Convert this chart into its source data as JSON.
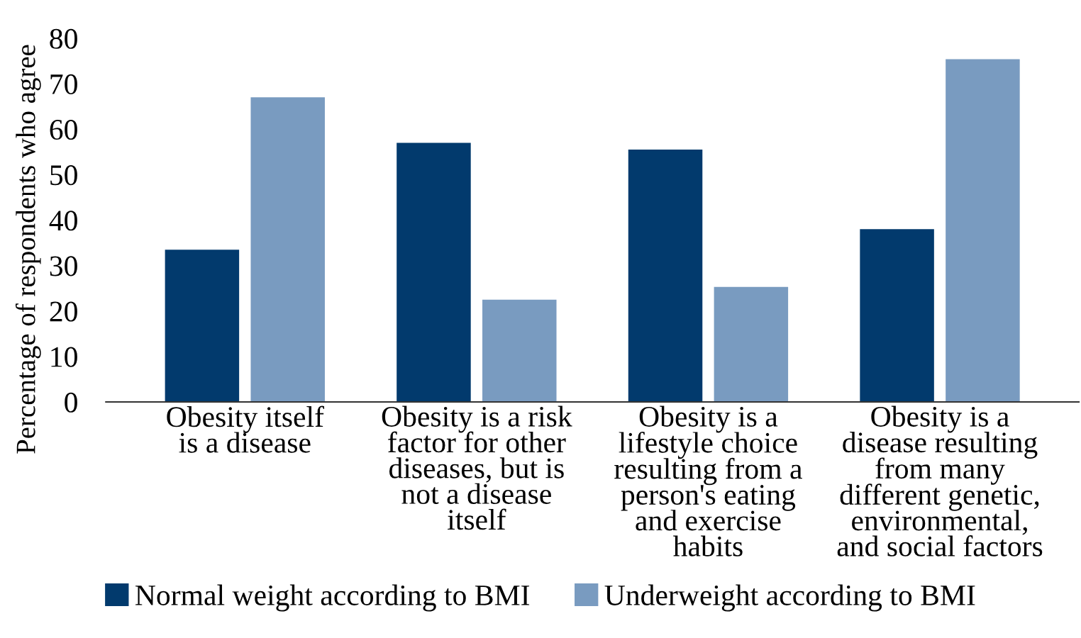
{
  "chart_data": {
    "type": "bar",
    "ylabel": "Percentage of respondents who agree",
    "categories": [
      "Obesity itself\nis a disease",
      "Obesity is a risk\nfactor for other\ndiseases, but is\nnot a disease\nitself",
      "Obesity is a\nlifestyle choice\nresulting from a\nperson's eating\nand exercise\nhabits",
      "Obesity is a\ndisease resulting\nfrom many\ndifferent genetic,\nenvironmental,\nand social factors"
    ],
    "series": [
      {
        "name": "Normal weight according to BMI",
        "color": "#023a6d",
        "values": [
          33.5,
          57,
          55.5,
          38
        ]
      },
      {
        "name": "Underweight according to BMI",
        "color": "#799bc0",
        "values": [
          67,
          22.5,
          25.3,
          75.4
        ]
      }
    ],
    "ylim": [
      0,
      80
    ],
    "yticks": [
      0,
      10,
      20,
      30,
      40,
      50,
      60,
      70,
      80
    ],
    "grid": false,
    "legend": "bottom"
  }
}
